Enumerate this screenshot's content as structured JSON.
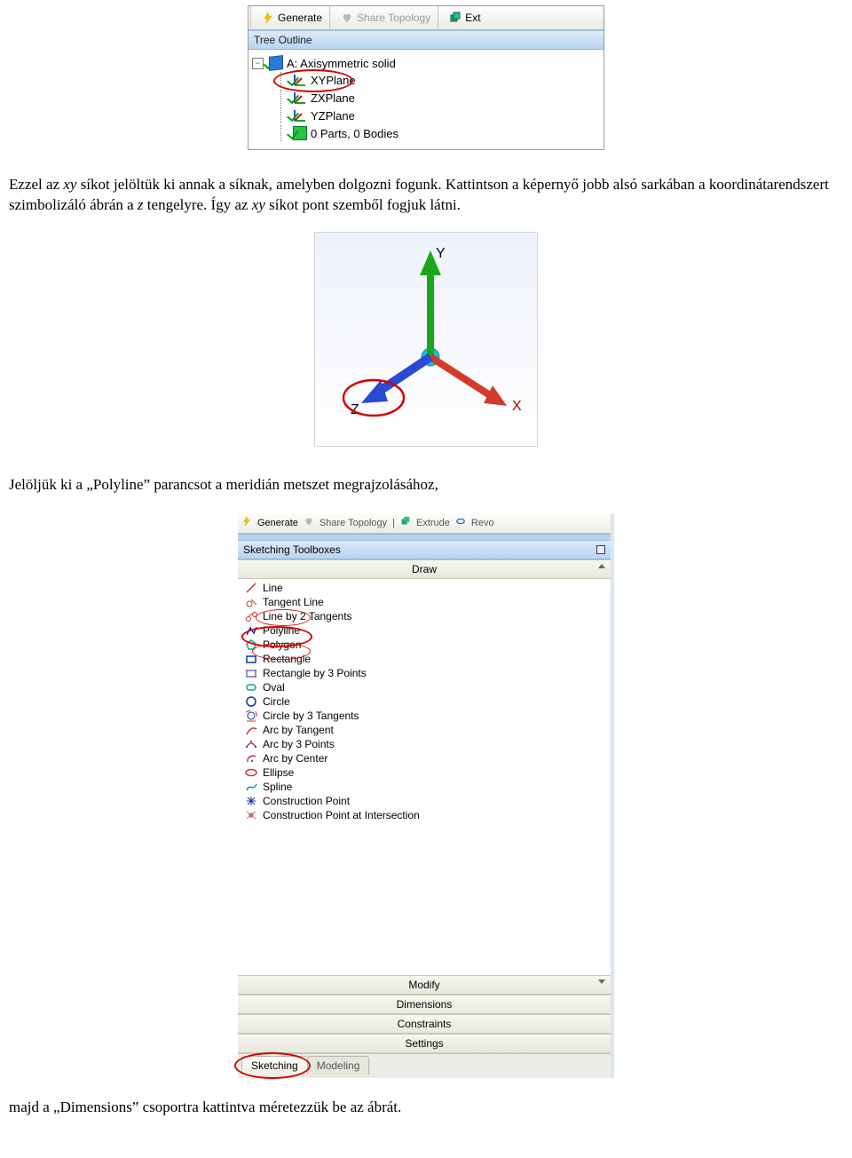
{
  "fig1": {
    "toolbar": {
      "generate": "Generate",
      "share": "Share Topology",
      "ext": "Ext"
    },
    "panel_title": "Tree Outline",
    "tree": {
      "root": "A: Axisymmetric solid",
      "items": [
        "XYPlane",
        "ZXPlane",
        "YZPlane",
        "0 Parts, 0 Bodies"
      ]
    }
  },
  "para1": {
    "a": "Ezzel az ",
    "xy1": "xy",
    "b": " síkot jelöltük ki annak a síknak, amelyben dolgozni fogunk. Kattintson a képernyő jobb alsó sarkában a koordinátarendszert szimbolizáló ábrán a ",
    "z": "z",
    "c": " tengelyre. Így az ",
    "xy2": "xy",
    "d": " síkot pont szemből fogjuk látni."
  },
  "fig2": {
    "Y": "Y",
    "X": "X",
    "Z": "Z"
  },
  "para2": "Jelöljük ki a „Polyline” parancsot a meridián metszet megrajzolásához,",
  "fig3": {
    "toolbar": {
      "generate": "Generate",
      "share": "Share Topology",
      "extrude": "Extrude",
      "revo": "Revo"
    },
    "panel_title": "Sketching Toolboxes",
    "groups": [
      "Draw",
      "Modify",
      "Dimensions",
      "Constraints",
      "Settings"
    ],
    "draw_items": [
      "Line",
      "Tangent Line",
      "Line by 2 Tangents",
      "Polyline",
      "Polygon",
      "Rectangle",
      "Rectangle by 3 Points",
      "Oval",
      "Circle",
      "Circle by 3 Tangents",
      "Arc by Tangent",
      "Arc by 3 Points",
      "Arc by Center",
      "Ellipse",
      "Spline",
      "Construction Point",
      "Construction Point at Intersection"
    ],
    "tabs": {
      "sketching": "Sketching",
      "modeling": "Modeling"
    }
  },
  "para3": "majd a „Dimensions” csoportra kattintva méretezzük be az ábrát.",
  "colors": {
    "highlight_ring": "#d40000",
    "x_axis": "#d43a2a",
    "y_axis": "#1aa81a",
    "z_axis": "#2a4ad4",
    "origin": "#18c0d8",
    "panel_blue_top": "#dbeaf9",
    "panel_blue_bot": "#b9d4ef"
  }
}
